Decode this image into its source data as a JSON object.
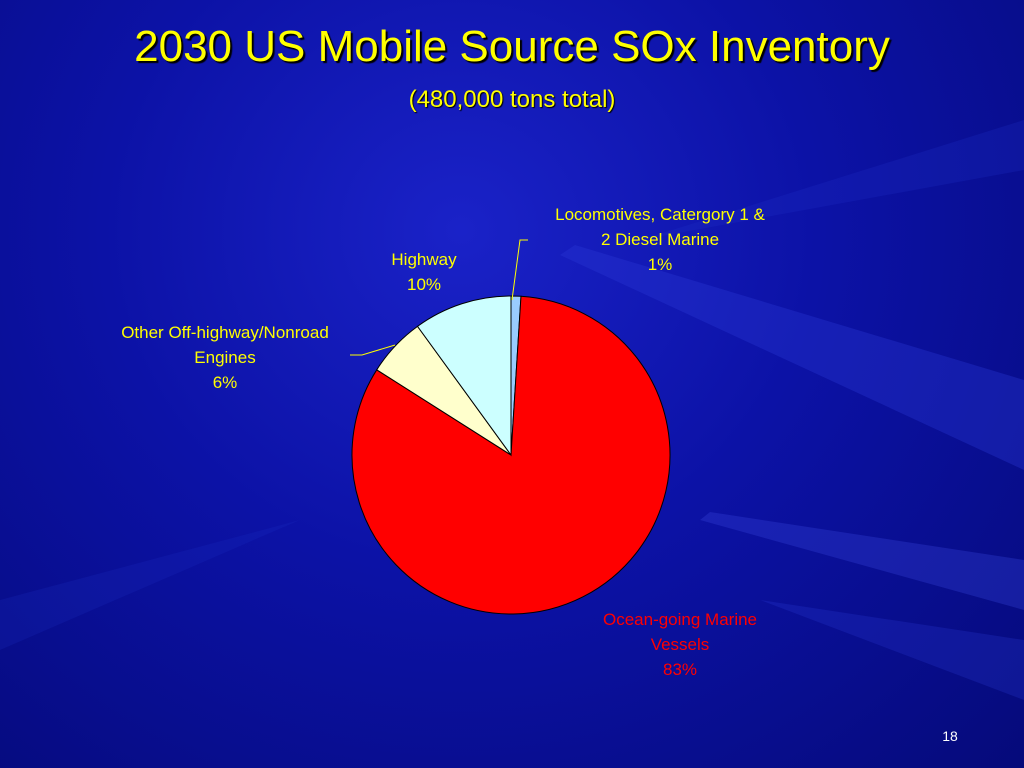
{
  "slide": {
    "title": "2030 US Mobile Source SOx Inventory",
    "subtitle": "(480,000 tons total)",
    "page_number": "18",
    "background_color": "#0c12a6",
    "title_color": "#ffff00"
  },
  "chart_data": {
    "type": "pie",
    "title": "2030 US Mobile Source SOx Inventory",
    "subtitle": "(480,000 tons total)",
    "slices": [
      {
        "label_lines": [
          "Locomotives, Catergory 1 &",
          "2 Diesel Marine"
        ],
        "percent_label": "1%",
        "value": 1,
        "color": "#99ccff",
        "label_color": "#ffff00"
      },
      {
        "label_lines": [
          "Ocean-going Marine",
          "Vessels"
        ],
        "percent_label": "83%",
        "value": 83,
        "color": "#ff0000",
        "label_color": "#ff0000"
      },
      {
        "label_lines": [
          "Other Off-highway/Nonroad",
          "Engines"
        ],
        "percent_label": "6%",
        "value": 6,
        "color": "#ffffcc",
        "label_color": "#ffff00"
      },
      {
        "label_lines": [
          "Highway"
        ],
        "percent_label": "10%",
        "value": 10,
        "color": "#ccffff",
        "label_color": "#ffff00"
      }
    ]
  }
}
